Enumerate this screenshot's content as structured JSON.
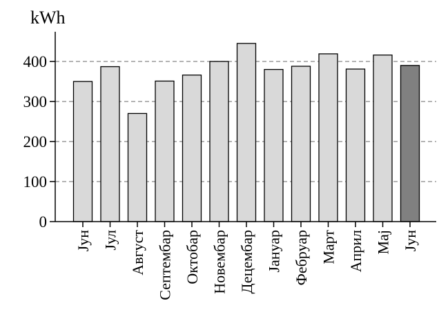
{
  "chart_data": {
    "type": "bar",
    "title": "",
    "unit": "kWh",
    "xlabel": "",
    "ylabel": "",
    "categories": [
      "Јун",
      "Јул",
      "Август",
      "Септембар",
      "Октобар",
      "Новембар",
      "Децембар",
      "Јануар",
      "Фебруар",
      "Март",
      "Април",
      "Мај",
      "Јун"
    ],
    "values": [
      350,
      387,
      270,
      351,
      366,
      400,
      445,
      380,
      388,
      419,
      381,
      416,
      390
    ],
    "highlighted_index": 12,
    "ylim": [
      0,
      470
    ],
    "yticks": [
      0,
      100,
      200,
      300,
      400
    ],
    "grid": "dashed horizontal at 100, 200, 300, 400",
    "colors": {
      "bar": "#d9d9d9",
      "highlight_bar": "#808080",
      "bar_stroke": "#000000",
      "grid": "#888888"
    }
  }
}
